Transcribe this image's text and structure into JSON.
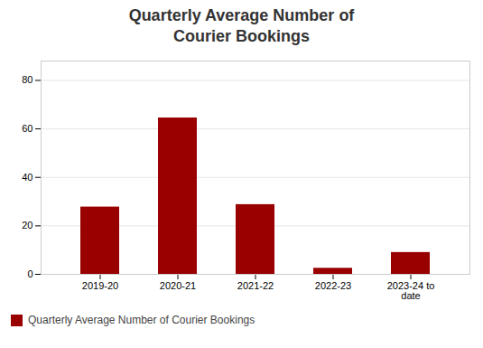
{
  "chart_data": {
    "type": "bar",
    "title": "Quarterly Average Number of\nCourier Bookings",
    "categories": [
      "2019-20",
      "2020-21",
      "2021-22",
      "2022-23",
      "2023-24 to\ndate"
    ],
    "series": [
      {
        "name": "Quarterly Average Number of Courier Bookings",
        "color": "#990000",
        "values": [
          27.75,
          64.5,
          28.75,
          2.5,
          9
        ]
      }
    ],
    "ylim": [
      0,
      88
    ],
    "yticks": [
      0,
      20,
      40,
      60,
      80
    ],
    "grid": true,
    "legend": "lower left"
  }
}
